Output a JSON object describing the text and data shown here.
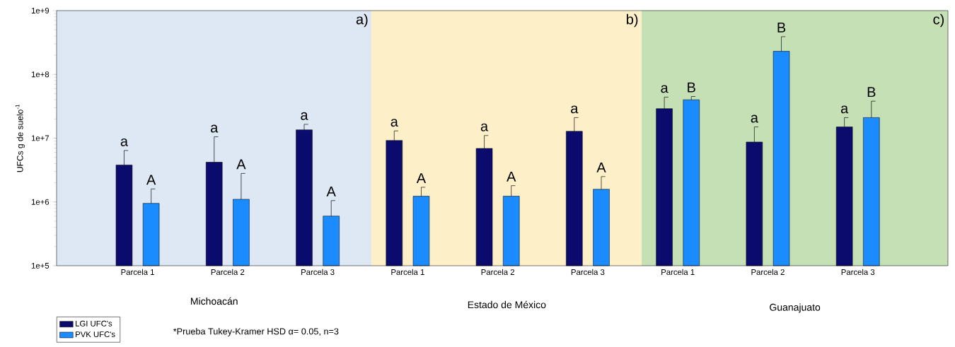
{
  "chart_data": {
    "type": "bar",
    "ylabel": "UFCs g de suelo$^{-1}$",
    "categories": [
      "Parcela 1",
      "Parcela 2",
      "Parcela 3",
      "Parcela 1",
      "Parcela 2",
      "Parcela 3",
      "Parcela 1",
      "Parcela 2",
      "Parcela 3"
    ],
    "series": [
      {
        "name": "LGI UFC's",
        "color": "#0b0b6e",
        "values": [
          3800000,
          4200000,
          13500000,
          9200000,
          6900000,
          12800000,
          29000000,
          8700000,
          15000000
        ],
        "errors": [
          [
            3800000,
            6400000
          ],
          [
            4200000,
            10500000
          ],
          [
            13500000,
            16500000
          ],
          [
            9200000,
            13000000
          ],
          [
            6900000,
            11000000
          ],
          [
            12800000,
            21000000
          ],
          [
            29000000,
            44000000
          ],
          [
            8700000,
            15000000
          ],
          [
            15000000,
            21000000
          ]
        ],
        "value_labels": [
          "a",
          "a",
          "a",
          "a",
          "a",
          "a",
          "a",
          "a",
          "a"
        ]
      },
      {
        "name": "PVK UFC's",
        "color": "#1a8cff",
        "values": [
          950000,
          1100000,
          600000,
          1230000,
          1230000,
          1580000,
          40000000,
          230000000,
          21000000
        ],
        "errors": [
          [
            950000,
            1600000
          ],
          [
            1100000,
            2800000
          ],
          [
            600000,
            1050000
          ],
          [
            1230000,
            1700000
          ],
          [
            1230000,
            1800000
          ],
          [
            1580000,
            2500000
          ],
          [
            40000000,
            45000000
          ],
          [
            230000000,
            390000000
          ],
          [
            21000000,
            38000000
          ]
        ],
        "value_labels": [
          "A",
          "A",
          "A",
          "A",
          "A",
          "A",
          "B",
          "B",
          "B"
        ]
      }
    ],
    "log": true,
    "ylim": [
      100000,
      1000000000
    ],
    "yticks": [
      {
        "value": 100000,
        "label": "1e+5"
      },
      {
        "value": 1000000,
        "label": "1e+6"
      },
      {
        "value": 10000000,
        "label": "1e+7"
      },
      {
        "value": 100000000,
        "label": "1e+8"
      },
      {
        "value": 1000000000,
        "label": "1e+9"
      }
    ],
    "annotations": [
      "Michoacán",
      "Estado de México",
      "Guanajuato",
      "a)",
      "b)",
      "c)",
      "*Prueba Tukey-Kramer HSD α= 0.05, n=3"
    ],
    "legend": "bottom left",
    "grid": false
  }
}
